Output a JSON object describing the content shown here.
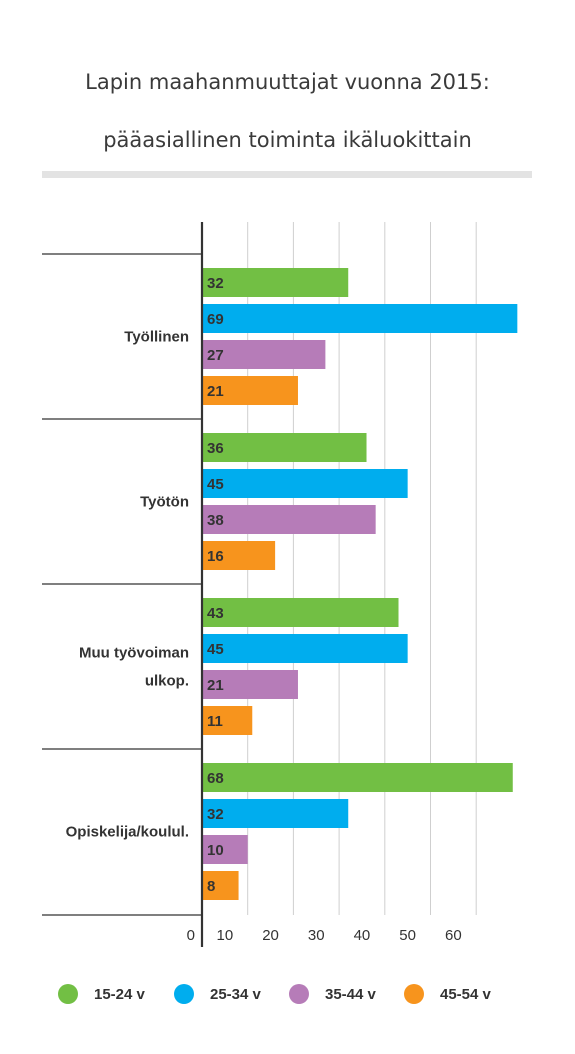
{
  "title_line1": "Lapin maahanmuuttajat vuonna 2015:",
  "title_line2": "pääasiallinen toiminta ikäluokittain",
  "chart_data": {
    "type": "bar",
    "orientation": "horizontal",
    "categories": [
      "Työllinen",
      "Työtön",
      "Muu työvoiman ulkop.",
      "Opiskelija/koulul."
    ],
    "category_label_lines": [
      [
        "Työllinen"
      ],
      [
        "Työtön"
      ],
      [
        "Muu työvoiman",
        "ulkop."
      ],
      [
        "Opiskelija/koulul."
      ]
    ],
    "series": [
      {
        "name": "15-24 v",
        "color": "#72bf44",
        "values": [
          32,
          36,
          43,
          68
        ]
      },
      {
        "name": "25-34 v",
        "color": "#00adee",
        "values": [
          69,
          45,
          45,
          32
        ]
      },
      {
        "name": "35-44 v",
        "color": "#b67cb8",
        "values": [
          27,
          38,
          21,
          10
        ]
      },
      {
        "name": "45-54 v",
        "color": "#f7941d",
        "values": [
          21,
          16,
          11,
          8
        ]
      }
    ],
    "x_ticks": [
      0,
      10,
      20,
      30,
      40,
      50,
      60
    ],
    "xlim": [
      0,
      70
    ],
    "grid": true,
    "legend_position": "bottom"
  }
}
